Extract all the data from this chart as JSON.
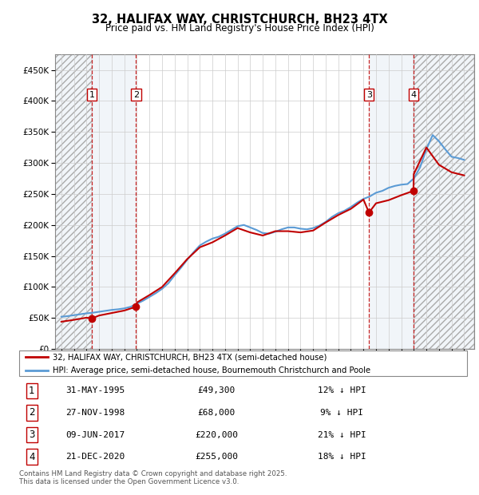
{
  "title1": "32, HALIFAX WAY, CHRISTCHURCH, BH23 4TX",
  "title2": "Price paid vs. HM Land Registry's House Price Index (HPI)",
  "footer": "Contains HM Land Registry data © Crown copyright and database right 2025.\nThis data is licensed under the Open Government Licence v3.0.",
  "legend_line1": "32, HALIFAX WAY, CHRISTCHURCH, BH23 4TX (semi-detached house)",
  "legend_line2": "HPI: Average price, semi-detached house, Bournemouth Christchurch and Poole",
  "transactions": [
    {
      "num": 1,
      "date": "31-MAY-1995",
      "price": 49300,
      "pct": "12%",
      "dir": "↓",
      "year": 1995.42
    },
    {
      "num": 2,
      "date": "27-NOV-1998",
      "price": 68000,
      "pct": "9%",
      "dir": "↓",
      "year": 1998.92
    },
    {
      "num": 3,
      "date": "09-JUN-2017",
      "price": 220000,
      "pct": "21%",
      "dir": "↓",
      "year": 2017.44
    },
    {
      "num": 4,
      "date": "21-DEC-2020",
      "price": 255000,
      "pct": "18%",
      "dir": "↓",
      "year": 2020.97
    }
  ],
  "hpi_years": [
    1993,
    1993.5,
    1994,
    1994.5,
    1995,
    1995.5,
    1996,
    1996.5,
    1997,
    1997.5,
    1998,
    1998.5,
    1999,
    1999.5,
    2000,
    2000.5,
    2001,
    2001.5,
    2002,
    2002.5,
    2003,
    2003.5,
    2004,
    2004.5,
    2005,
    2005.5,
    2006,
    2006.5,
    2007,
    2007.5,
    2008,
    2008.5,
    2009,
    2009.5,
    2010,
    2010.5,
    2011,
    2011.5,
    2012,
    2012.5,
    2013,
    2013.5,
    2014,
    2014.5,
    2015,
    2015.5,
    2016,
    2016.5,
    2017,
    2017.5,
    2018,
    2018.5,
    2019,
    2019.5,
    2020,
    2020.5,
    2021,
    2021.5,
    2022,
    2022.5,
    2023,
    2023.5,
    2024,
    2024.5,
    2025
  ],
  "hpi_values": [
    52000,
    53000,
    54500,
    56000,
    57500,
    58500,
    60000,
    61500,
    63000,
    64000,
    65500,
    68000,
    73000,
    78000,
    84000,
    90000,
    97000,
    106000,
    119000,
    131000,
    144000,
    156000,
    167000,
    173000,
    178000,
    181000,
    186000,
    192000,
    198000,
    200000,
    196000,
    192000,
    187000,
    186000,
    189000,
    193000,
    196000,
    196000,
    194000,
    193000,
    195000,
    199000,
    205000,
    213000,
    219000,
    223000,
    229000,
    236000,
    242000,
    246000,
    252000,
    255000,
    260000,
    263000,
    265000,
    266000,
    275000,
    293000,
    322000,
    345000,
    335000,
    322000,
    310000,
    308000,
    305000
  ],
  "price_years": [
    1993,
    1994,
    1995,
    1995.42,
    1996,
    1997,
    1998,
    1998.92,
    1999,
    2000,
    2001,
    2002,
    2003,
    2004,
    2005,
    2006,
    2007,
    2008,
    2009,
    2010,
    2011,
    2012,
    2013,
    2014,
    2015,
    2016,
    2017,
    2017.44,
    2018,
    2019,
    2020,
    2020.97,
    2021,
    2022,
    2023,
    2024,
    2025
  ],
  "price_values": [
    44000,
    47000,
    50500,
    49300,
    54000,
    58000,
    62000,
    68000,
    75000,
    87000,
    100000,
    122000,
    145000,
    164000,
    172000,
    183000,
    195000,
    188000,
    183000,
    190000,
    190000,
    188000,
    191000,
    204000,
    216000,
    226000,
    241000,
    220000,
    235000,
    240000,
    248000,
    255000,
    282000,
    325000,
    297000,
    285000,
    280000
  ],
  "ylim": [
    0,
    475000
  ],
  "xlim_start": 1992.5,
  "xlim_end": 2025.8,
  "hpi_color": "#5b9bd5",
  "price_color": "#c00000",
  "bg_hatch_color": "#dce6f1",
  "bg_owned_color": "#dce6f1"
}
